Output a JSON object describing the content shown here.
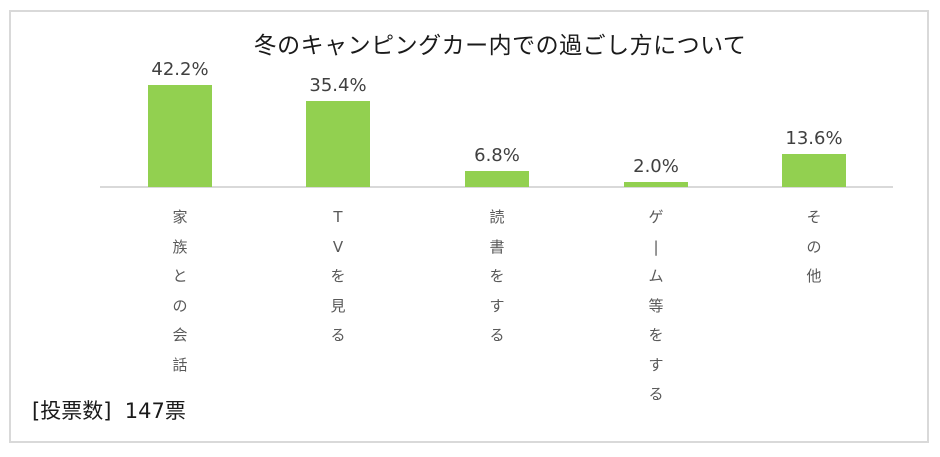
{
  "chart_data": {
    "type": "bar",
    "title": "冬のキャンピングカー内での過ごし方について",
    "categories": [
      "家族との会話",
      "TVを見る",
      "読書をする",
      "ゲーム等をする",
      "その他"
    ],
    "values": [
      42.2,
      35.4,
      6.8,
      2.0,
      13.6
    ],
    "value_labels": [
      "42.2%",
      "35.4%",
      "6.8%",
      "2.0%",
      "13.6%"
    ],
    "xlabel": "",
    "ylabel": "",
    "ylim": [
      0,
      45
    ],
    "grid": false,
    "legend": "none",
    "bar_color": "#92D050",
    "category_label_orientation": "vertical",
    "annotation": "[投票数]  147票"
  },
  "votes": {
    "label": "[投票数]",
    "count": "147票"
  },
  "category_chars": [
    [
      "家",
      "族",
      "と",
      "の",
      "会",
      "話"
    ],
    [
      "T",
      "V",
      "を",
      "見",
      "る"
    ],
    [
      "読",
      "書",
      "を",
      "す",
      "る"
    ],
    [
      "ゲ",
      "|",
      "ム",
      "等",
      "を",
      "す",
      "る"
    ],
    [
      "そ",
      "の",
      "他"
    ]
  ]
}
